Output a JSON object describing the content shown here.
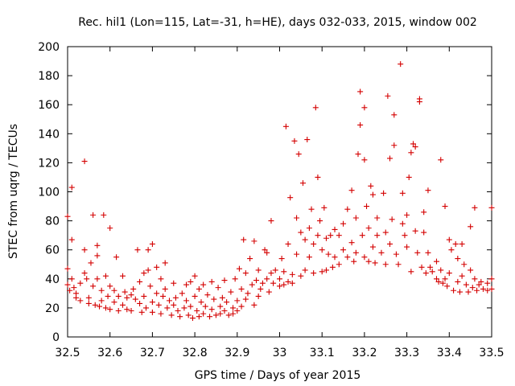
{
  "chart_data": {
    "type": "scatter",
    "title": "Rec. hil1 (Lon=115, Lat=-31, h=HE), days 032-033, 2015, window 002",
    "xlabel": "GPS time / Days of year 2015",
    "ylabel": "STEC from uqrg / TECUs",
    "xlim": [
      32.5,
      33.5
    ],
    "ylim": [
      0,
      200
    ],
    "x_ticks": [
      "32.5",
      "32.6",
      "32.7",
      "32.8",
      "32.9",
      "33",
      "33.1",
      "33.2",
      "33.3",
      "33.4",
      "33.5"
    ],
    "y_ticks": [
      "0",
      "20",
      "40",
      "60",
      "80",
      "100",
      "120",
      "140",
      "160",
      "180",
      "200"
    ],
    "grid": false,
    "marker": "plus",
    "color": "#d40000",
    "series": [
      {
        "name": "STEC",
        "points": [
          [
            32.5,
            83
          ],
          [
            32.5,
            47
          ],
          [
            32.5,
            36
          ],
          [
            32.505,
            32
          ],
          [
            32.51,
            103
          ],
          [
            32.51,
            67
          ],
          [
            32.51,
            40
          ],
          [
            32.515,
            34
          ],
          [
            32.52,
            30
          ],
          [
            32.52,
            27
          ],
          [
            32.53,
            37
          ],
          [
            32.53,
            25
          ],
          [
            32.54,
            121
          ],
          [
            32.54,
            60
          ],
          [
            32.54,
            44
          ],
          [
            32.545,
            40
          ],
          [
            32.55,
            23
          ],
          [
            32.55,
            27
          ],
          [
            32.555,
            51
          ],
          [
            32.56,
            84
          ],
          [
            32.56,
            35
          ],
          [
            32.565,
            22
          ],
          [
            32.57,
            63
          ],
          [
            32.57,
            56
          ],
          [
            32.57,
            40
          ],
          [
            32.575,
            21
          ],
          [
            32.58,
            32
          ],
          [
            32.58,
            25
          ],
          [
            32.585,
            84
          ],
          [
            32.59,
            42
          ],
          [
            32.59,
            20
          ],
          [
            32.595,
            28
          ],
          [
            32.6,
            75
          ],
          [
            32.6,
            35
          ],
          [
            32.6,
            19
          ],
          [
            32.61,
            32
          ],
          [
            32.61,
            24
          ],
          [
            32.615,
            55
          ],
          [
            32.62,
            28
          ],
          [
            32.62,
            18
          ],
          [
            32.63,
            42
          ],
          [
            32.63,
            22
          ],
          [
            32.635,
            31
          ],
          [
            32.64,
            27
          ],
          [
            32.64,
            19
          ],
          [
            32.65,
            29
          ],
          [
            32.65,
            18
          ],
          [
            32.655,
            33
          ],
          [
            32.66,
            26
          ],
          [
            32.665,
            60
          ],
          [
            32.67,
            38
          ],
          [
            32.67,
            23
          ],
          [
            32.675,
            17
          ],
          [
            32.68,
            44
          ],
          [
            32.68,
            28
          ],
          [
            32.685,
            20
          ],
          [
            32.69,
            60
          ],
          [
            32.69,
            46
          ],
          [
            32.695,
            35
          ],
          [
            32.7,
            64
          ],
          [
            32.7,
            24
          ],
          [
            32.7,
            17
          ],
          [
            32.71,
            48
          ],
          [
            32.71,
            30
          ],
          [
            32.715,
            22
          ],
          [
            32.72,
            40
          ],
          [
            32.72,
            16
          ],
          [
            32.725,
            28
          ],
          [
            32.73,
            51
          ],
          [
            32.73,
            33
          ],
          [
            32.735,
            20
          ],
          [
            32.74,
            25
          ],
          [
            32.745,
            15
          ],
          [
            32.75,
            37
          ],
          [
            32.75,
            22
          ],
          [
            32.755,
            27
          ],
          [
            32.76,
            18
          ],
          [
            32.765,
            14
          ],
          [
            32.77,
            30
          ],
          [
            32.775,
            20
          ],
          [
            32.78,
            36
          ],
          [
            32.78,
            25
          ],
          [
            32.785,
            15
          ],
          [
            32.79,
            38
          ],
          [
            32.79,
            21
          ],
          [
            32.795,
            13
          ],
          [
            32.8,
            42
          ],
          [
            32.8,
            28
          ],
          [
            32.805,
            18
          ],
          [
            32.81,
            33
          ],
          [
            32.81,
            14
          ],
          [
            32.815,
            24
          ],
          [
            32.82,
            36
          ],
          [
            32.82,
            16
          ],
          [
            32.825,
            21
          ],
          [
            32.83,
            29
          ],
          [
            32.835,
            14
          ],
          [
            32.84,
            38
          ],
          [
            32.84,
            19
          ],
          [
            32.845,
            26
          ],
          [
            32.85,
            15
          ],
          [
            32.855,
            34
          ],
          [
            32.86,
            21
          ],
          [
            32.86,
            16
          ],
          [
            32.865,
            27
          ],
          [
            32.87,
            39
          ],
          [
            32.87,
            18
          ],
          [
            32.875,
            24
          ],
          [
            32.88,
            15
          ],
          [
            32.885,
            31
          ],
          [
            32.89,
            20
          ],
          [
            32.89,
            16
          ],
          [
            32.895,
            40
          ],
          [
            32.9,
            25
          ],
          [
            32.9,
            18
          ],
          [
            32.905,
            47
          ],
          [
            32.91,
            33
          ],
          [
            32.91,
            21
          ],
          [
            32.915,
            67
          ],
          [
            32.92,
            44
          ],
          [
            32.92,
            26
          ],
          [
            32.925,
            30
          ],
          [
            32.93,
            54
          ],
          [
            32.935,
            36
          ],
          [
            32.94,
            66
          ],
          [
            32.94,
            22
          ],
          [
            32.945,
            39
          ],
          [
            32.95,
            46
          ],
          [
            32.95,
            28
          ],
          [
            32.955,
            33
          ],
          [
            32.96,
            37
          ],
          [
            32.965,
            60
          ],
          [
            32.97,
            58
          ],
          [
            32.97,
            40
          ],
          [
            32.975,
            31
          ],
          [
            32.98,
            80
          ],
          [
            32.98,
            44
          ],
          [
            32.985,
            37
          ],
          [
            32.99,
            46
          ],
          [
            33.0,
            40
          ],
          [
            33.0,
            35
          ],
          [
            33.005,
            54
          ],
          [
            33.01,
            45
          ],
          [
            33.01,
            36
          ],
          [
            33.015,
            145
          ],
          [
            33.02,
            64
          ],
          [
            33.02,
            38
          ],
          [
            33.025,
            96
          ],
          [
            33.03,
            43
          ],
          [
            33.03,
            37
          ],
          [
            33.035,
            135
          ],
          [
            33.04,
            82
          ],
          [
            33.04,
            57
          ],
          [
            33.045,
            126
          ],
          [
            33.05,
            72
          ],
          [
            33.05,
            42
          ],
          [
            33.055,
            106
          ],
          [
            33.06,
            67
          ],
          [
            33.06,
            46
          ],
          [
            33.065,
            136
          ],
          [
            33.07,
            75
          ],
          [
            33.07,
            55
          ],
          [
            33.075,
            88
          ],
          [
            33.08,
            64
          ],
          [
            33.08,
            44
          ],
          [
            33.085,
            158
          ],
          [
            33.09,
            110
          ],
          [
            33.09,
            70
          ],
          [
            33.095,
            80
          ],
          [
            33.1,
            60
          ],
          [
            33.1,
            45
          ],
          [
            33.105,
            89
          ],
          [
            33.11,
            68
          ],
          [
            33.11,
            46
          ],
          [
            33.115,
            57
          ],
          [
            33.12,
            70
          ],
          [
            33.125,
            48
          ],
          [
            33.13,
            74
          ],
          [
            33.13,
            55
          ],
          [
            33.14,
            70
          ],
          [
            33.14,
            50
          ],
          [
            33.15,
            78
          ],
          [
            33.15,
            60
          ],
          [
            33.16,
            88
          ],
          [
            33.16,
            55
          ],
          [
            33.17,
            101
          ],
          [
            33.17,
            65
          ],
          [
            33.175,
            52
          ],
          [
            33.18,
            82
          ],
          [
            33.18,
            58
          ],
          [
            33.185,
            126
          ],
          [
            33.19,
            169
          ],
          [
            33.19,
            146
          ],
          [
            33.195,
            70
          ],
          [
            33.2,
            122
          ],
          [
            33.2,
            158
          ],
          [
            33.2,
            55
          ],
          [
            33.205,
            90
          ],
          [
            33.21,
            75
          ],
          [
            33.21,
            52
          ],
          [
            33.215,
            104
          ],
          [
            33.22,
            98
          ],
          [
            33.22,
            62
          ],
          [
            33.225,
            51
          ],
          [
            33.23,
            82
          ],
          [
            33.23,
            70
          ],
          [
            33.24,
            58
          ],
          [
            33.245,
            99
          ],
          [
            33.25,
            72
          ],
          [
            33.25,
            50
          ],
          [
            33.255,
            166
          ],
          [
            33.26,
            123
          ],
          [
            33.26,
            64
          ],
          [
            33.265,
            81
          ],
          [
            33.27,
            153
          ],
          [
            33.27,
            132
          ],
          [
            33.275,
            57
          ],
          [
            33.28,
            50
          ],
          [
            33.285,
            188
          ],
          [
            33.29,
            99
          ],
          [
            33.29,
            78
          ],
          [
            33.295,
            70
          ],
          [
            33.3,
            84
          ],
          [
            33.3,
            62
          ],
          [
            33.305,
            110
          ],
          [
            33.31,
            127
          ],
          [
            33.31,
            45
          ],
          [
            33.315,
            133
          ],
          [
            33.32,
            131
          ],
          [
            33.32,
            73
          ],
          [
            33.325,
            58
          ],
          [
            33.33,
            162
          ],
          [
            33.33,
            164
          ],
          [
            33.335,
            48
          ],
          [
            33.34,
            86
          ],
          [
            33.34,
            72
          ],
          [
            33.345,
            44
          ],
          [
            33.35,
            101
          ],
          [
            33.35,
            58
          ],
          [
            33.355,
            48
          ],
          [
            33.36,
            45
          ],
          [
            33.37,
            52
          ],
          [
            33.37,
            40
          ],
          [
            33.375,
            38
          ],
          [
            33.38,
            122
          ],
          [
            33.38,
            46
          ],
          [
            33.385,
            37
          ],
          [
            33.39,
            90
          ],
          [
            33.39,
            40
          ],
          [
            33.395,
            35
          ],
          [
            33.4,
            67
          ],
          [
            33.4,
            44
          ],
          [
            33.405,
            60
          ],
          [
            33.41,
            32
          ],
          [
            33.415,
            64
          ],
          [
            33.42,
            54
          ],
          [
            33.42,
            38
          ],
          [
            33.425,
            31
          ],
          [
            33.43,
            64
          ],
          [
            33.43,
            42
          ],
          [
            33.435,
            50
          ],
          [
            33.44,
            36
          ],
          [
            33.445,
            31
          ],
          [
            33.45,
            76
          ],
          [
            33.45,
            46
          ],
          [
            33.455,
            34
          ],
          [
            33.46,
            89
          ],
          [
            33.46,
            40
          ],
          [
            33.465,
            32
          ],
          [
            33.47,
            36
          ],
          [
            33.475,
            38
          ],
          [
            33.48,
            33
          ],
          [
            33.49,
            37
          ],
          [
            33.49,
            32
          ],
          [
            33.5,
            89
          ],
          [
            33.5,
            40
          ],
          [
            33.5,
            33
          ]
        ]
      }
    ]
  }
}
